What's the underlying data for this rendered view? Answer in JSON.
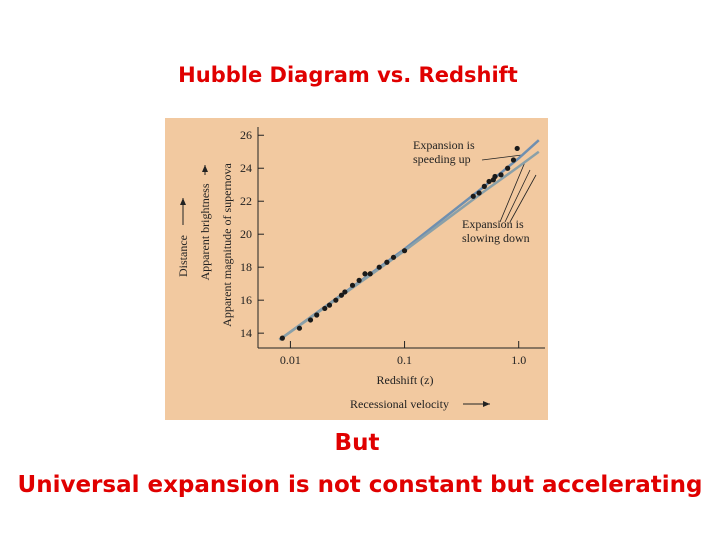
{
  "slide": {
    "title": "Hubble Diagram vs. Redshift",
    "caption": [
      "But",
      "Universal expansion is not constant but accelerating"
    ]
  },
  "chart_data": {
    "type": "scatter",
    "x_label": "Redshift (z)",
    "x_label_2": "Recessional velocity",
    "y_label": "Apparent magnitude of supernova",
    "y_label_2": "Apparent brightness",
    "y_label_3": "Distance",
    "annotations": [
      {
        "lines": [
          "Expansion is",
          "speeding up"
        ]
      },
      {
        "lines": [
          "Expansion is",
          "slowing down"
        ]
      }
    ],
    "x_scale": "log",
    "xlim": [
      0.0052,
      1.7
    ],
    "xticks": [
      0.01,
      0.1,
      {
        "value": 1,
        "label": "1.0"
      }
    ],
    "ylim": [
      13.1,
      26.5
    ],
    "yticks": [
      14,
      16,
      18,
      20,
      22,
      24,
      26
    ],
    "background": "#f2c9a0",
    "series": [
      {
        "style": "line",
        "color": "#6f8fb0",
        "x": [
          0.008,
          0.1,
          0.5,
          1.0,
          1.5
        ],
        "y": [
          13.6,
          19.1,
          22.9,
          24.6,
          25.7
        ]
      },
      {
        "style": "line",
        "color": "#8aa0a8",
        "x": [
          0.008,
          0.1,
          0.5,
          1.0,
          1.5
        ],
        "y": [
          13.6,
          19.0,
          22.6,
          24.1,
          25.0
        ]
      },
      {
        "style": "markers",
        "color": "#1a1a1a",
        "x": [
          0.0085,
          0.012,
          0.015,
          0.017,
          0.02,
          0.022,
          0.025,
          0.028,
          0.03,
          0.035,
          0.04,
          0.045,
          0.05,
          0.06,
          0.07,
          0.08,
          0.1,
          0.4,
          0.45,
          0.5,
          0.55,
          0.6,
          0.62,
          0.7,
          0.8,
          0.9,
          0.97
        ],
        "y": [
          13.7,
          14.3,
          14.8,
          15.1,
          15.5,
          15.7,
          16.0,
          16.3,
          16.5,
          16.9,
          17.2,
          17.6,
          17.6,
          18.0,
          18.3,
          18.6,
          19.0,
          22.3,
          22.5,
          22.9,
          23.2,
          23.3,
          23.5,
          23.6,
          24.0,
          24.5,
          25.2
        ]
      }
    ]
  }
}
